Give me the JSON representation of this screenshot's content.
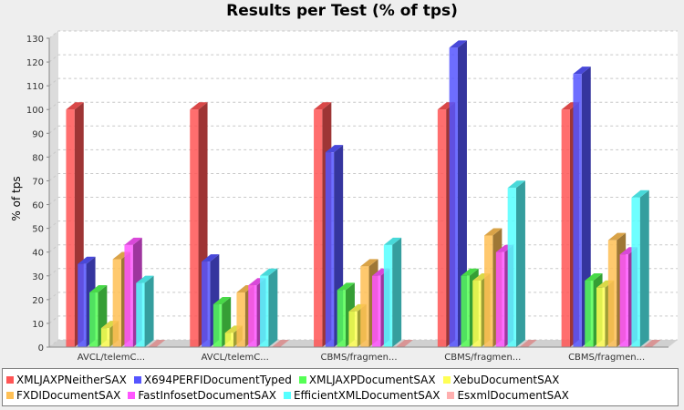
{
  "chart_data": {
    "type": "bar",
    "title": "Results per Test (% of tps)",
    "xlabel": "",
    "ylabel": "% of tps",
    "ylim": [
      0,
      130
    ],
    "yticks": [
      0,
      10,
      20,
      30,
      40,
      50,
      60,
      70,
      80,
      90,
      100,
      110,
      120,
      130
    ],
    "grid": true,
    "legend_position": "bottom",
    "categories": [
      "AVCL/telemC...",
      "AVCL/telemC...",
      "CBMS/fragmen...",
      "CBMS/fragmen...",
      "CBMS/fragmen..."
    ],
    "series": [
      {
        "name": "XMLJAXPNeitherSAX",
        "color": "#ff5555",
        "values": [
          100,
          100,
          100,
          100,
          100
        ]
      },
      {
        "name": "X694PERFIDocumentTyped",
        "color": "#5555ff",
        "values": [
          35,
          36,
          82,
          126,
          115
        ]
      },
      {
        "name": "XMLJAXPDocumentSAX",
        "color": "#55ff55",
        "values": [
          23,
          18,
          24,
          30,
          28
        ]
      },
      {
        "name": "XebuDocumentSAX",
        "color": "#ffff55",
        "values": [
          8,
          6,
          15,
          28,
          25
        ]
      },
      {
        "name": "FXDIDocumentSAX",
        "color": "#ffc055",
        "values": [
          37,
          23,
          34,
          47,
          45
        ]
      },
      {
        "name": "FastInfosetDocumentSAX",
        "color": "#ff55ff",
        "values": [
          43,
          26,
          30,
          40,
          39
        ]
      },
      {
        "name": "EfficientXMLDocumentSAX",
        "color": "#55ffff",
        "values": [
          27,
          30,
          43,
          67,
          63
        ]
      },
      {
        "name": "EsxmlDocumentSAX",
        "color": "#ffafaf",
        "values": [
          0,
          0,
          0,
          0,
          0
        ]
      }
    ]
  }
}
